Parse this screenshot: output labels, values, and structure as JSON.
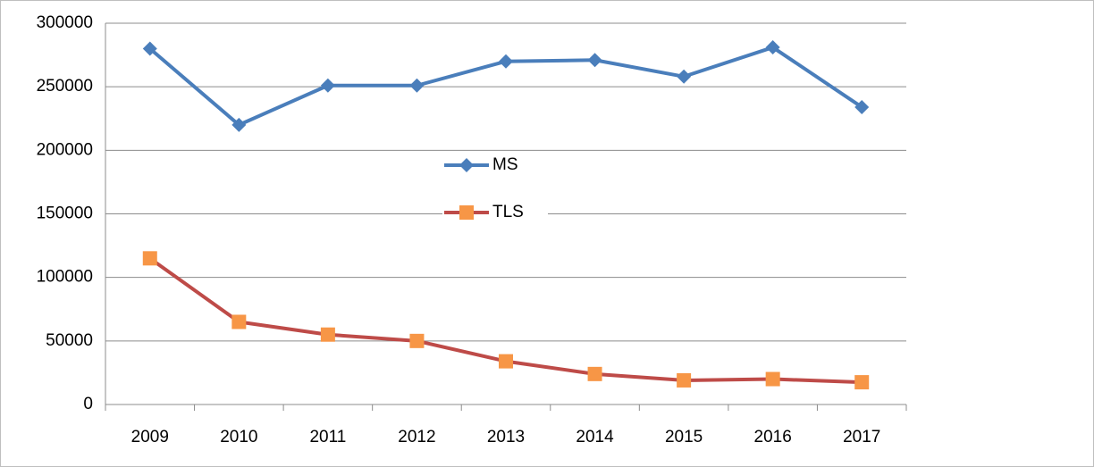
{
  "chart_data": {
    "type": "line",
    "categories": [
      "2009",
      "2010",
      "2011",
      "2012",
      "2013",
      "2014",
      "2015",
      "2016",
      "2017"
    ],
    "series": [
      {
        "name": "MS",
        "color": "#4a7ebb",
        "marker": "diamond",
        "values": [
          280000,
          220000,
          251000,
          251000,
          270000,
          271000,
          258000,
          281000,
          234000
        ]
      },
      {
        "name": "TLS",
        "color": "#be4b48",
        "marker": "square",
        "marker_color": "#f79646",
        "values": [
          115000,
          65000,
          55000,
          50000,
          34000,
          24000,
          19000,
          20000,
          17500
        ]
      }
    ],
    "ylim": [
      0,
      300000
    ],
    "yticks": [
      0,
      50000,
      100000,
      150000,
      200000,
      250000,
      300000
    ],
    "grid": true,
    "legend": "center"
  }
}
